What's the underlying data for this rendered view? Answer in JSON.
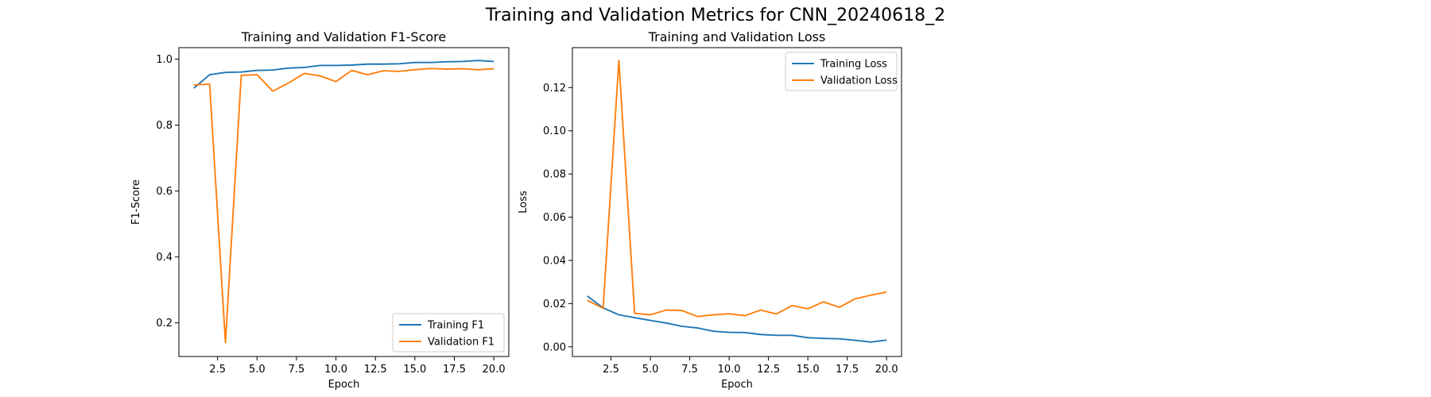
{
  "figure": {
    "suptitle": "Training and Validation Metrics for CNN_20240618_2"
  },
  "colors": {
    "training": "#1f77b4",
    "validation": "#ff7f0e"
  },
  "chart_data": [
    {
      "type": "line",
      "title": "Training and Validation F1-Score",
      "xlabel": "Epoch",
      "ylabel": "F1-Score",
      "xlim": [
        0.05,
        20.95
      ],
      "ylim": [
        0.098,
        1.035
      ],
      "xticks": [
        2.5,
        5.0,
        7.5,
        10.0,
        12.5,
        15.0,
        17.5,
        20.0
      ],
      "xtick_labels": [
        "2.5",
        "5.0",
        "7.5",
        "10.0",
        "12.5",
        "15.0",
        "17.5",
        "20.0"
      ],
      "yticks": [
        0.2,
        0.4,
        0.6,
        0.8,
        1.0
      ],
      "ytick_labels": [
        "0.2",
        "0.4",
        "0.6",
        "0.8",
        "1.0"
      ],
      "grid": false,
      "legend_position": "lower-right",
      "x": [
        1,
        2,
        3,
        4,
        5,
        6,
        7,
        8,
        9,
        10,
        11,
        12,
        13,
        14,
        15,
        16,
        17,
        18,
        19,
        20
      ],
      "series": [
        {
          "name": "Training F1",
          "color": "#1f77b4",
          "values": [
            0.912,
            0.953,
            0.96,
            0.961,
            0.966,
            0.967,
            0.973,
            0.975,
            0.981,
            0.981,
            0.982,
            0.985,
            0.985,
            0.986,
            0.99,
            0.99,
            0.992,
            0.993,
            0.996,
            0.993
          ]
        },
        {
          "name": "Validation F1",
          "color": "#ff7f0e",
          "values": [
            0.922,
            0.924,
            0.14,
            0.951,
            0.953,
            0.903,
            0.928,
            0.957,
            0.949,
            0.932,
            0.966,
            0.953,
            0.965,
            0.963,
            0.968,
            0.972,
            0.97,
            0.971,
            0.968,
            0.971
          ]
        }
      ]
    },
    {
      "type": "line",
      "title": "Training and Validation Loss",
      "xlabel": "Epoch",
      "ylabel": "Loss",
      "xlim": [
        0.05,
        20.95
      ],
      "ylim": [
        -0.0045,
        0.1385
      ],
      "xticks": [
        2.5,
        5.0,
        7.5,
        10.0,
        12.5,
        15.0,
        17.5,
        20.0
      ],
      "xtick_labels": [
        "2.5",
        "5.0",
        "7.5",
        "10.0",
        "12.5",
        "15.0",
        "17.5",
        "20.0"
      ],
      "yticks": [
        0.0,
        0.02,
        0.04,
        0.06,
        0.08,
        0.1,
        0.12
      ],
      "ytick_labels": [
        "0.00",
        "0.02",
        "0.04",
        "0.06",
        "0.08",
        "0.10",
        "0.12"
      ],
      "grid": false,
      "legend_position": "upper-right",
      "x": [
        1,
        2,
        3,
        4,
        5,
        6,
        7,
        8,
        9,
        10,
        11,
        12,
        13,
        14,
        15,
        16,
        17,
        18,
        19,
        20
      ],
      "series": [
        {
          "name": "Training Loss",
          "color": "#1f77b4",
          "values": [
            0.0235,
            0.018,
            0.0148,
            0.0135,
            0.0122,
            0.011,
            0.0095,
            0.0087,
            0.0072,
            0.0067,
            0.0066,
            0.0057,
            0.0053,
            0.0053,
            0.0042,
            0.0039,
            0.0037,
            0.003,
            0.0022,
            0.0031
          ]
        },
        {
          "name": "Validation Loss",
          "color": "#ff7f0e",
          "values": [
            0.0215,
            0.0178,
            0.1325,
            0.0155,
            0.0148,
            0.017,
            0.0168,
            0.014,
            0.0148,
            0.0153,
            0.0144,
            0.017,
            0.0152,
            0.0191,
            0.0176,
            0.0208,
            0.0183,
            0.0222,
            0.0239,
            0.0253
          ]
        }
      ]
    }
  ]
}
